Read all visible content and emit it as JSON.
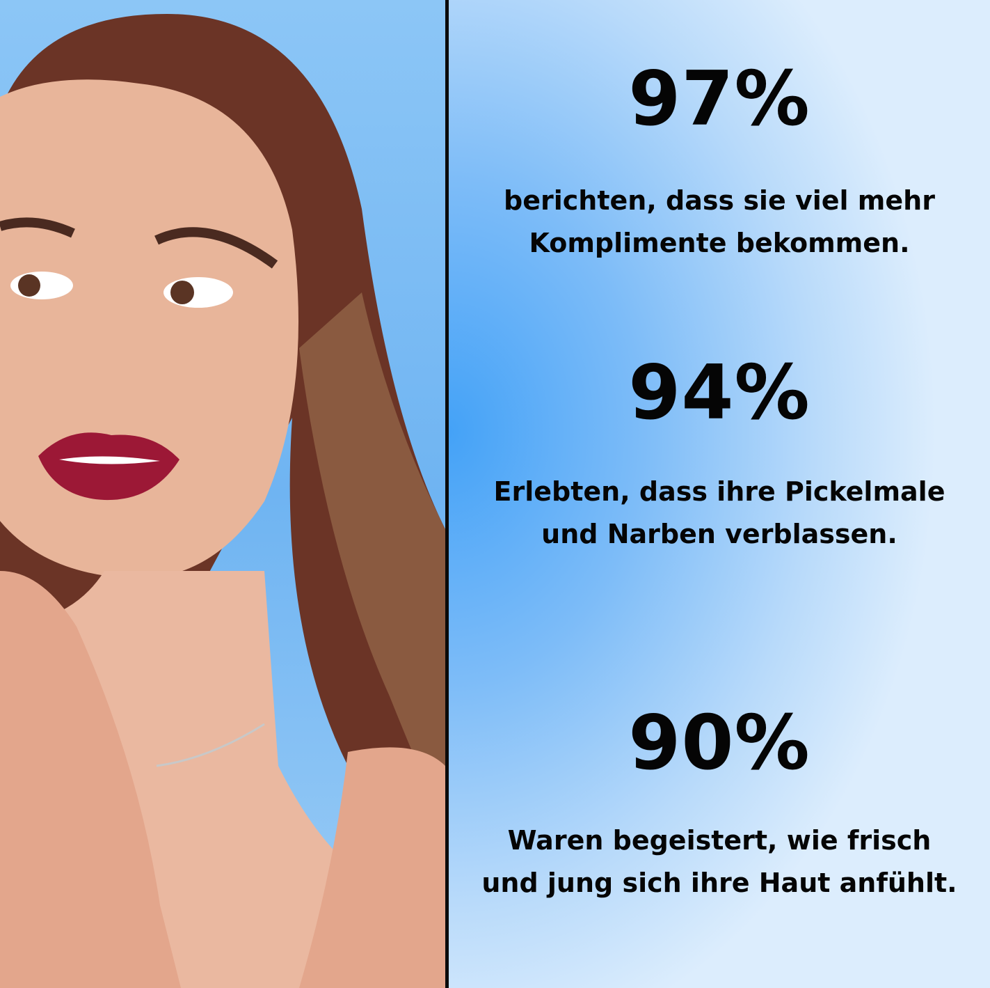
{
  "colors": {
    "panel_center": "#44a2f7",
    "panel_edge": "#dcedfd",
    "divider": "#0a0a0a",
    "text": "#050505"
  },
  "photo": {
    "alt_icon": "portrait-photo"
  },
  "stats": [
    {
      "value": "97%",
      "lines": [
        "berichten, dass sie viel mehr",
        "Komplimente bekommen."
      ]
    },
    {
      "value": "94%",
      "lines": [
        "Erlebten, dass ihre Pickelmale",
        "und Narben verblassen."
      ]
    },
    {
      "value": "90%",
      "lines": [
        "Waren begeistert, wie frisch",
        "und jung sich ihre Haut anfühlt."
      ]
    }
  ]
}
